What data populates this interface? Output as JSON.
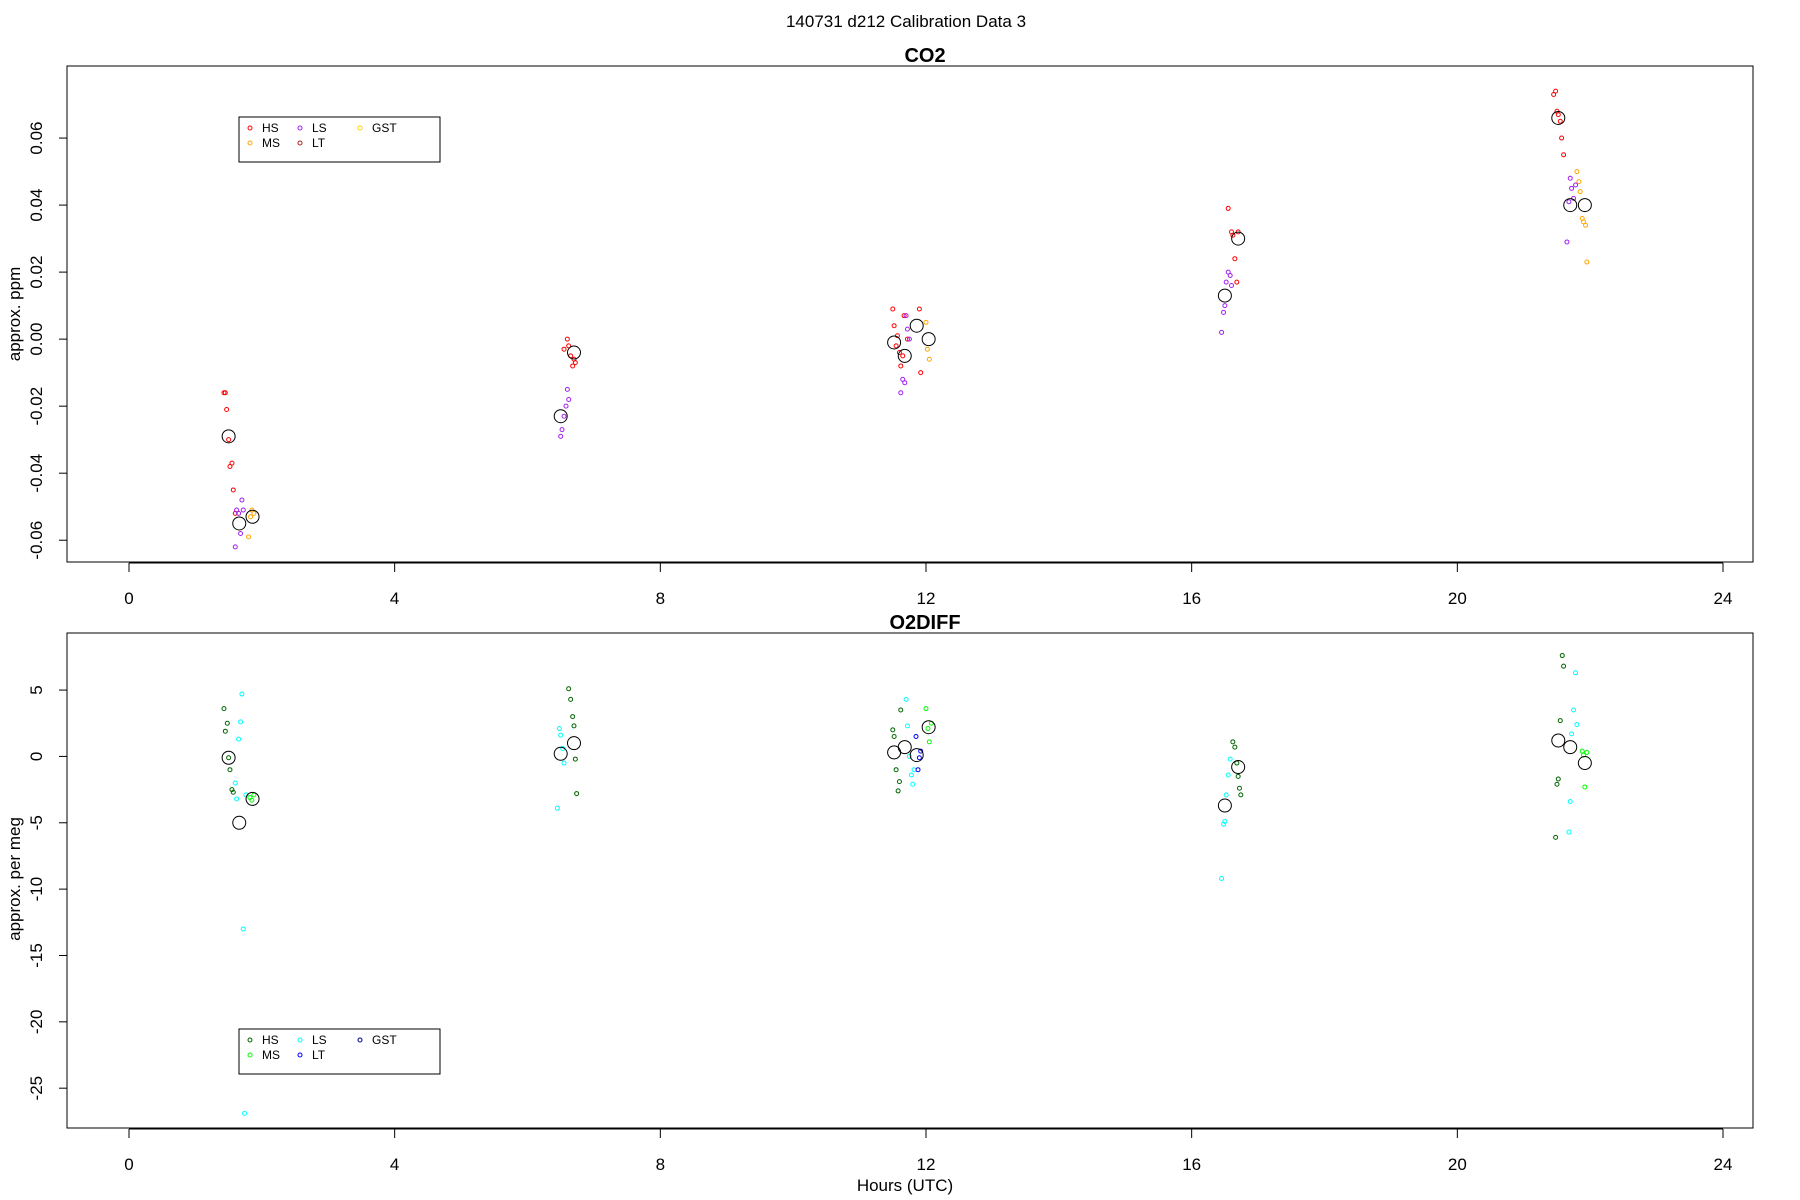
{
  "suptitle": "140731   d212   Calibration Data 3",
  "xlabel": "Hours (UTC)",
  "chart_data": [
    {
      "type": "scatter",
      "title": "CO2",
      "xlabel": "",
      "ylabel": "approx. ppm",
      "xlim": [
        -0.9,
        24.4
      ],
      "ylim": [
        -0.0665,
        0.0815
      ],
      "xticks": [
        0,
        4,
        8,
        12,
        16,
        20,
        24
      ],
      "yticks": [
        -0.06,
        -0.04,
        -0.02,
        0.0,
        0.02,
        0.04,
        0.06
      ],
      "ytick_labels": [
        "-0.06",
        "-0.04",
        "-0.02",
        "0.00",
        "0.02",
        "0.04",
        "0.06"
      ],
      "grid": false,
      "legend": {
        "placement": "top-left",
        "entries": [
          "HS",
          "MS",
          "LS",
          "LT",
          "GST"
        ],
        "colors": [
          "#ff0000",
          "#ffa500",
          "#a020f0",
          "#b22222",
          "#ffd700"
        ]
      },
      "series": [
        {
          "name": "HS",
          "color": "#ff0000",
          "x": [
            1.43,
            1.45,
            1.47,
            1.5,
            1.52,
            1.55,
            1.57,
            1.6,
            11.5,
            11.52,
            11.55,
            11.57,
            11.6,
            11.62,
            11.65,
            11.67,
            11.72,
            11.9,
            11.92,
            6.55,
            6.6,
            6.62,
            6.65,
            6.68,
            6.7,
            6.72,
            16.55,
            16.6,
            16.62,
            16.65,
            16.68,
            16.7,
            21.45,
            21.48,
            21.5,
            21.52,
            21.55,
            21.57,
            21.6
          ],
          "y": [
            -0.016,
            -0.016,
            -0.021,
            -0.03,
            -0.038,
            -0.037,
            -0.045,
            -0.052,
            0.009,
            0.004,
            -0.002,
            0.001,
            -0.004,
            -0.008,
            -0.005,
            0.007,
            0.0,
            0.009,
            -0.01,
            -0.003,
            0.0,
            -0.002,
            -0.005,
            -0.008,
            -0.006,
            -0.007,
            0.039,
            0.032,
            0.031,
            0.024,
            0.017,
            0.032,
            0.073,
            0.074,
            0.068,
            0.067,
            0.065,
            0.06,
            0.055
          ]
        },
        {
          "name": "MS",
          "color": "#ffa500",
          "x": [
            1.8,
            1.83,
            1.85,
            1.88,
            12.0,
            12.02,
            12.05,
            21.8,
            21.83,
            21.85,
            21.88,
            21.9,
            21.93,
            21.95
          ],
          "y": [
            -0.059,
            -0.053,
            -0.051,
            -0.052,
            0.005,
            -0.003,
            -0.006,
            0.05,
            0.047,
            0.044,
            0.036,
            0.035,
            0.034,
            0.023
          ]
        },
        {
          "name": "LS",
          "color": "#a020f0",
          "x": [
            1.6,
            1.62,
            1.65,
            1.68,
            1.7,
            1.72,
            6.5,
            6.52,
            6.55,
            6.58,
            6.6,
            6.62,
            11.62,
            11.65,
            11.68,
            11.7,
            11.72,
            11.75,
            16.45,
            16.48,
            16.5,
            16.52,
            16.55,
            16.58,
            16.6,
            21.65,
            21.68,
            21.7,
            21.72,
            21.75,
            21.78
          ],
          "y": [
            -0.062,
            -0.051,
            -0.052,
            -0.058,
            -0.048,
            -0.051,
            -0.029,
            -0.027,
            -0.023,
            -0.02,
            -0.015,
            -0.018,
            -0.016,
            -0.012,
            -0.013,
            0.007,
            0.003,
            -0.0,
            0.002,
            0.008,
            0.01,
            0.017,
            0.02,
            0.019,
            0.016,
            0.029,
            0.041,
            0.048,
            0.045,
            0.042,
            0.046
          ]
        },
        {
          "name": "LT",
          "color": "#b22222",
          "x": [],
          "y": []
        },
        {
          "name": "GST",
          "color": "#ffd700",
          "x": [],
          "y": []
        },
        {
          "name": "",
          "color": "#000000",
          "size": "large",
          "x": [
            1.5,
            1.66,
            1.86,
            6.5,
            6.7,
            11.52,
            11.68,
            11.86,
            12.04,
            16.5,
            16.7,
            21.52,
            21.7,
            21.92
          ],
          "y": [
            -0.029,
            -0.055,
            -0.053,
            -0.023,
            -0.004,
            -0.001,
            -0.005,
            0.004,
            0.0,
            0.013,
            0.03,
            0.066,
            0.04,
            0.04
          ]
        }
      ]
    },
    {
      "type": "scatter",
      "title": "O2DIFF",
      "xlabel": "Hours (UTC)",
      "ylabel": "approx. per meg",
      "xlim": [
        -0.9,
        24.4
      ],
      "ylim": [
        -28,
        9.3
      ],
      "xticks": [
        0,
        4,
        8,
        12,
        16,
        20,
        24
      ],
      "yticks": [
        -25,
        -20,
        -15,
        -10,
        -5,
        0,
        5
      ],
      "ytick_labels": [
        "-25",
        "-20",
        "-15",
        "-10",
        "-5",
        "0",
        "5"
      ],
      "grid": false,
      "legend": {
        "placement": "bottom-left",
        "entries": [
          "HS",
          "MS",
          "LS",
          "LT",
          "GST"
        ],
        "colors": [
          "#006400",
          "#00ff00",
          "#00ffff",
          "#0000ff",
          "#00008b"
        ]
      },
      "series": [
        {
          "name": "HS",
          "color": "#006400",
          "x": [
            1.43,
            1.45,
            1.48,
            1.5,
            1.52,
            1.55,
            1.57,
            6.62,
            6.65,
            6.68,
            6.7,
            6.72,
            6.74,
            11.5,
            11.52,
            11.55,
            11.58,
            11.6,
            11.62,
            16.62,
            16.65,
            16.68,
            16.7,
            16.72,
            16.74,
            21.48,
            21.5,
            21.52,
            21.55,
            21.58,
            21.6
          ],
          "y": [
            3.6,
            1.9,
            2.5,
            -0.1,
            -1.0,
            -2.5,
            -2.7,
            5.1,
            4.3,
            3.0,
            2.3,
            -0.2,
            -2.8,
            2.0,
            1.5,
            -1.0,
            -2.6,
            -1.9,
            3.5,
            1.1,
            0.7,
            -0.5,
            -1.5,
            -2.4,
            -2.9,
            -6.1,
            -2.1,
            -1.7,
            2.7,
            7.6,
            6.8
          ]
        },
        {
          "name": "MS",
          "color": "#00ff00",
          "x": [
            1.82,
            1.85,
            1.88,
            12.0,
            12.03,
            12.05,
            12.08,
            21.88,
            21.9,
            21.92,
            21.95
          ],
          "y": [
            -3.1,
            -3.3,
            -2.9,
            3.6,
            2.1,
            1.1,
            2.5,
            0.4,
            0.1,
            -2.3,
            0.3
          ]
        },
        {
          "name": "LS",
          "color": "#00ffff",
          "x": [
            1.6,
            1.62,
            1.65,
            1.68,
            1.7,
            1.72,
            1.74,
            1.76,
            6.45,
            6.48,
            6.5,
            6.53,
            6.55,
            11.7,
            11.72,
            11.75,
            11.78,
            11.8,
            11.82,
            16.45,
            16.48,
            16.5,
            16.52,
            16.55,
            16.58,
            21.68,
            21.7,
            21.72,
            21.75,
            21.78,
            21.8
          ],
          "y": [
            -2.0,
            -3.2,
            1.3,
            2.6,
            4.7,
            -13.0,
            -26.9,
            -2.9,
            -3.9,
            2.1,
            1.6,
            0.6,
            -0.5,
            4.3,
            2.3,
            0.0,
            -1.4,
            -2.1,
            -1.0,
            -9.2,
            -5.1,
            -4.9,
            -2.9,
            -1.4,
            -0.2,
            -5.7,
            -3.4,
            1.7,
            3.5,
            6.3,
            2.4
          ]
        },
        {
          "name": "LT",
          "color": "#0000ff",
          "x": [
            11.85,
            11.88,
            11.9,
            11.92
          ],
          "y": [
            1.5,
            -1.0,
            -0.1,
            0.4
          ]
        },
        {
          "name": "GST",
          "color": "#00008b",
          "x": [],
          "y": []
        },
        {
          "name": "",
          "color": "#000000",
          "size": "large",
          "x": [
            1.5,
            1.66,
            1.86,
            6.5,
            6.7,
            11.52,
            11.68,
            11.86,
            12.04,
            16.5,
            16.7,
            21.52,
            21.7,
            21.92
          ],
          "y": [
            -0.1,
            -5.0,
            -3.2,
            0.2,
            1.0,
            0.3,
            0.7,
            0.1,
            2.2,
            -3.7,
            -0.8,
            1.2,
            0.7,
            -0.5
          ]
        }
      ]
    }
  ]
}
